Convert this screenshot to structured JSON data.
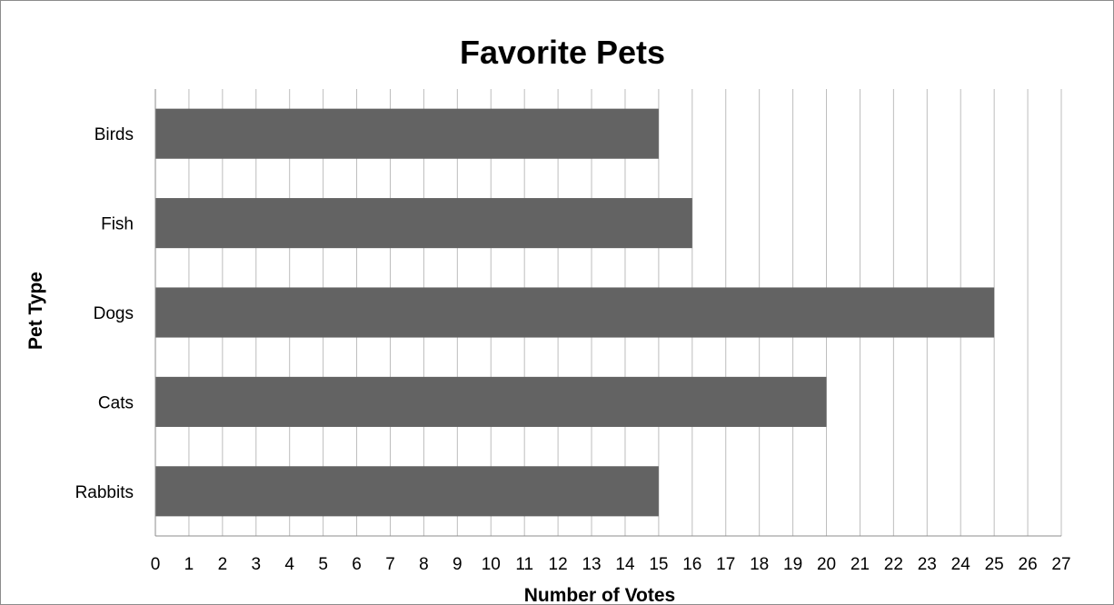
{
  "chart_data": {
    "type": "bar",
    "orientation": "horizontal",
    "title": "Favorite Pets",
    "xlabel": "Number of Votes",
    "ylabel": "Pet Type",
    "categories": [
      "Birds",
      "Fish",
      "Dogs",
      "Cats",
      "Rabbits"
    ],
    "values": [
      15,
      16,
      25,
      20,
      15
    ],
    "xlim": [
      0,
      27
    ],
    "x_ticks": [
      0,
      1,
      2,
      3,
      4,
      5,
      6,
      7,
      8,
      9,
      10,
      11,
      12,
      13,
      14,
      15,
      16,
      17,
      18,
      19,
      20,
      21,
      22,
      23,
      24,
      25,
      26,
      27
    ],
    "grid": "vertical",
    "legend": "none",
    "colors": {
      "bar": "#636363",
      "grid": "#bdbdbd",
      "axis": "#8c8c8c"
    }
  }
}
